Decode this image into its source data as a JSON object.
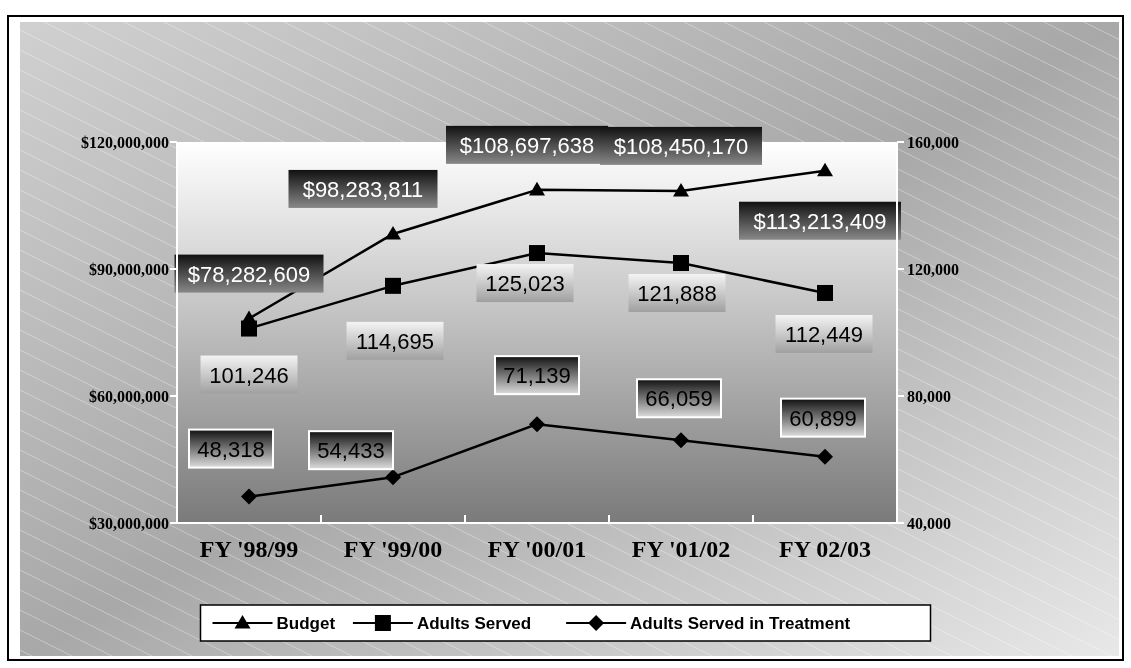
{
  "chart_data": {
    "type": "line",
    "categories": [
      "FY '98/99",
      "FY '99/00",
      "FY '00/01",
      "FY '01/02",
      "FY 02/03"
    ],
    "series": [
      {
        "name": "Budget",
        "color": "#000000",
        "marker": "triangle",
        "values": [
          78282609,
          98283811,
          108697638,
          108450170,
          113213409
        ],
        "value_labels": [
          "$78,282,609",
          "$98,283,811",
          "$108,697,638",
          "$108,450,170",
          "$113,213,409"
        ]
      },
      {
        "name": "Adults Served",
        "color": "#000000",
        "marker": "square",
        "axis": "y2",
        "values": [
          101246,
          114695,
          125023,
          121888,
          112449
        ],
        "value_labels": [
          "101,246",
          "114,695",
          "125,023",
          "121,888",
          "112,449"
        ]
      },
      {
        "name": "Adults Served in Treatment",
        "color": "#000000",
        "marker": "diamond",
        "axis": "y2",
        "values": [
          48318,
          54433,
          71139,
          66059,
          60899
        ],
        "value_labels": [
          "48,318",
          "54,433",
          "71,139",
          "66,059",
          "60,899"
        ]
      }
    ],
    "ylim": [
      30000000,
      120000000
    ],
    "yticks": [
      {
        "value": 30000000,
        "label": "$30,000,000"
      },
      {
        "value": 60000000,
        "label": "$60,000,000"
      },
      {
        "value": 90000000,
        "label": "$90,000,000"
      },
      {
        "value": 120000000,
        "label": "$120,000,000"
      }
    ],
    "y2lim": [
      40000,
      160000
    ],
    "y2ticks": [
      {
        "value": 40000,
        "label": "40,000"
      },
      {
        "value": 80000,
        "label": "80,000"
      },
      {
        "value": 120000,
        "label": "120,000"
      },
      {
        "value": 160000,
        "label": "160,000"
      }
    ],
    "legend": "bottom",
    "grid": false,
    "line_style": "solid"
  }
}
